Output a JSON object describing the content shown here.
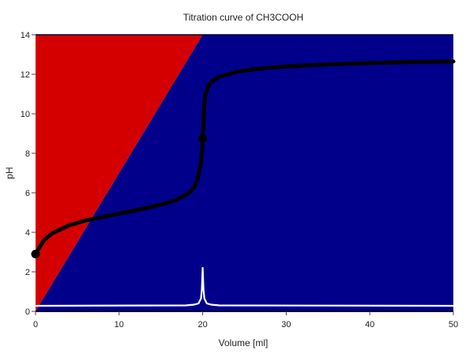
{
  "chart_data": {
    "type": "line",
    "title": "Titration curve of CH3COOH",
    "xlabel": "Volume [ml]",
    "ylabel": "pH",
    "xlim": [
      0,
      50
    ],
    "ylim": [
      0,
      14
    ],
    "x_ticks": [
      0,
      10,
      20,
      30,
      40,
      50
    ],
    "y_ticks": [
      0,
      2,
      4,
      6,
      8,
      10,
      12,
      14
    ],
    "grid": false,
    "legend": "none",
    "background_regions": [
      {
        "name": "acidic",
        "color": "#d40000",
        "polygon": [
          [
            0,
            0
          ],
          [
            0,
            14
          ],
          [
            20,
            14
          ]
        ]
      },
      {
        "name": "basic",
        "color": "#00008b",
        "polygon": [
          [
            0,
            0
          ],
          [
            20,
            14
          ],
          [
            50,
            14
          ],
          [
            50,
            0
          ]
        ]
      }
    ],
    "series": [
      {
        "color": "#000000",
        "x": [
          0,
          1,
          2,
          4,
          6,
          8,
          10,
          12,
          14,
          16,
          17,
          18,
          18.5,
          19,
          19.4,
          19.7,
          19.85,
          20,
          20.15,
          20.3,
          20.6,
          21,
          22,
          24,
          26,
          30,
          35,
          40,
          45,
          50
        ],
        "y": [
          2.9,
          3.6,
          3.95,
          4.35,
          4.6,
          4.78,
          4.95,
          5.12,
          5.3,
          5.52,
          5.67,
          5.9,
          6.05,
          6.3,
          6.7,
          7.3,
          7.8,
          8.75,
          10.2,
          10.9,
          11.35,
          11.6,
          11.88,
          12.12,
          12.25,
          12.4,
          12.5,
          12.57,
          12.62,
          12.65
        ]
      },
      {
        "color": "#ffffff",
        "x": [
          0,
          18,
          19,
          19.5,
          19.8,
          19.9,
          20,
          20.1,
          20.2,
          20.5,
          21,
          22,
          50
        ],
        "y": [
          0.28,
          0.3,
          0.34,
          0.4,
          0.65,
          1.1,
          2.2,
          1.1,
          0.65,
          0.4,
          0.34,
          0.3,
          0.28
        ]
      }
    ],
    "markers": [
      {
        "x": 0,
        "y": 2.9,
        "color": "#000000"
      },
      {
        "x": 20,
        "y": 8.75,
        "color": "#000000"
      }
    ]
  }
}
